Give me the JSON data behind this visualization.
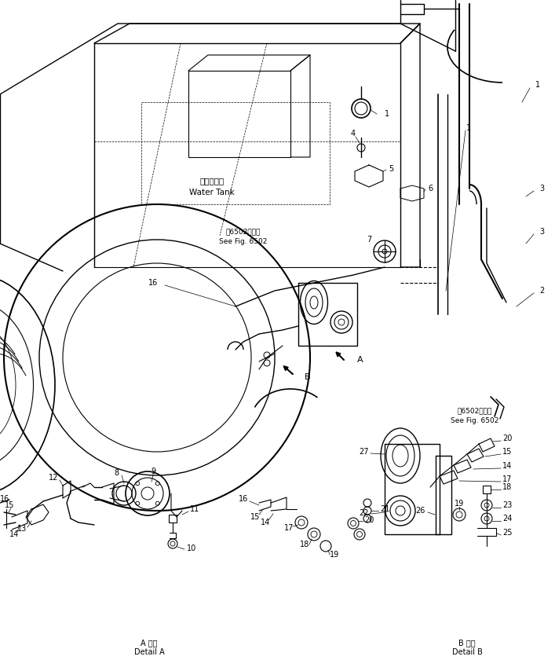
{
  "bg_color": "#ffffff",
  "line_color": "#000000",
  "fig_width": 7.07,
  "fig_height": 8.4,
  "dpi": 100,
  "annotations": {
    "water_tank_jp": "給水タンク",
    "water_tank_en": "Water Tank",
    "see_fig_6502_jp1": "ㅖ6502図参照",
    "see_fig_6502_en1": "See Fig. 6502",
    "see_fig_6502_jp2": "ㅖ6502図参照",
    "see_fig_6502_en2": "See Fig. 6502",
    "detail_a_jp": "A 詳細",
    "detail_a_en": "Detail A",
    "detail_b_jp": "B 詳細",
    "detail_b_en": "Detail B"
  }
}
